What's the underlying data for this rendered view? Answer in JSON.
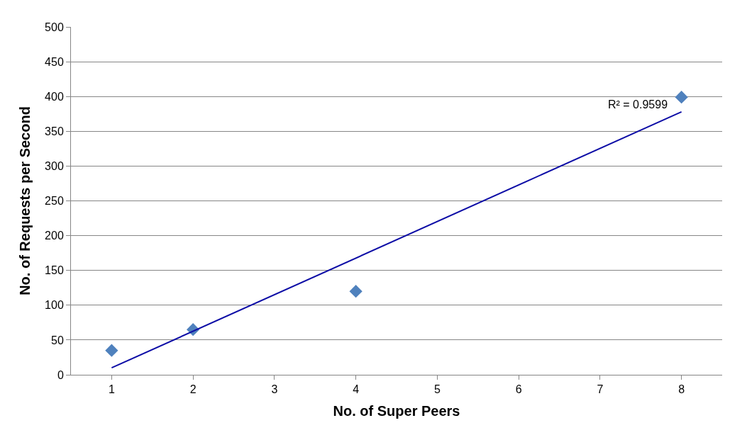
{
  "chart_data": {
    "type": "scatter",
    "xlabel": "No. of Super Peers",
    "ylabel": "No. of Requests per Second",
    "x": [
      1,
      2,
      4,
      8
    ],
    "series": [
      {
        "color": "#4f81bd",
        "values": [
          35,
          65,
          120,
          399
        ],
        "marker": "diamond"
      },
      {
        "type": "line",
        "color": "#0d0da6",
        "x": [
          1,
          8
        ],
        "values": [
          10,
          378
        ],
        "marker": "none",
        "line_style": "solid"
      }
    ],
    "annotations": [
      "R² = 0.9599"
    ],
    "xlim": [
      0.5,
      8.5
    ],
    "xticks": [
      1,
      2,
      3,
      4,
      5,
      6,
      7,
      8
    ],
    "ylim": [
      0,
      500
    ],
    "yticks": [
      0,
      50,
      100,
      150,
      200,
      250,
      300,
      350,
      400,
      450,
      500
    ],
    "grid": "y",
    "legend": false
  }
}
